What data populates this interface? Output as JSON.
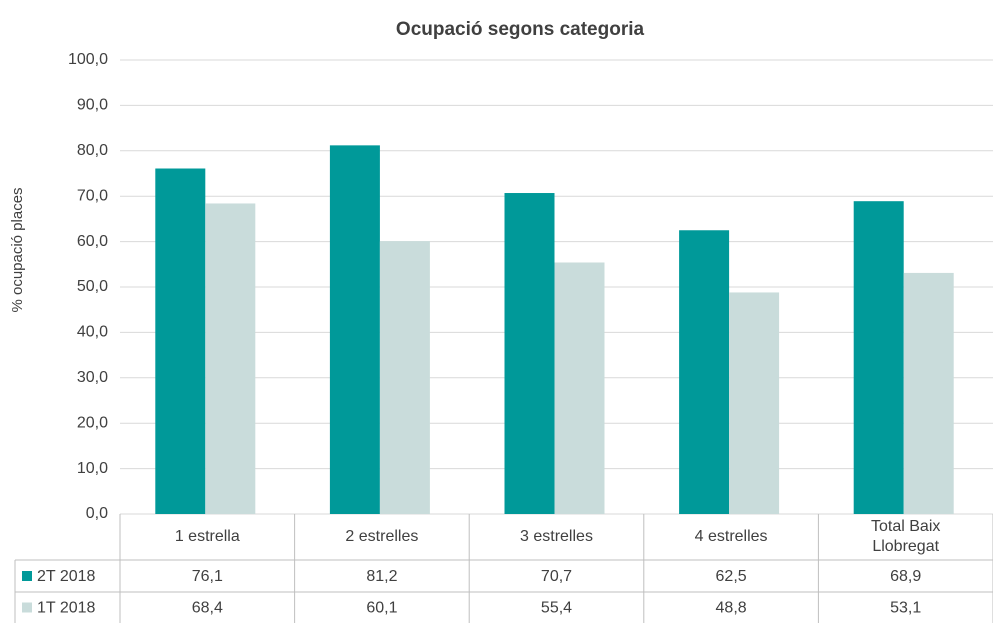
{
  "chart_data": {
    "type": "bar",
    "title": "Ocupació segons categoria",
    "ylabel": "% ocupació  places",
    "categories": [
      "1 estrella",
      "2 estrelles",
      "3 estrelles",
      "4 estrelles",
      "Total Baix Llobregat"
    ],
    "series": [
      {
        "name": "2T 2018",
        "color": "#009999",
        "values": [
          76.1,
          81.2,
          70.7,
          62.5,
          68.9
        ],
        "value_labels": [
          "76,1",
          "81,2",
          "70,7",
          "62,5",
          "68,9"
        ]
      },
      {
        "name": "1T 2018",
        "color": "#c9dcdb",
        "values": [
          68.4,
          60.1,
          55.4,
          48.8,
          53.1
        ],
        "value_labels": [
          "68,4",
          "60,1",
          "55,4",
          "48,8",
          "53,1"
        ]
      }
    ],
    "ylim": [
      0,
      100
    ],
    "yticks": [
      {
        "value": 0,
        "label": "0,0"
      },
      {
        "value": 10,
        "label": "10,0"
      },
      {
        "value": 20,
        "label": "20,0"
      },
      {
        "value": 30,
        "label": "30,0"
      },
      {
        "value": 40,
        "label": "40,0"
      },
      {
        "value": 50,
        "label": "50,0"
      },
      {
        "value": 60,
        "label": "60,0"
      },
      {
        "value": 70,
        "label": "70,0"
      },
      {
        "value": 80,
        "label": "80,0"
      },
      {
        "value": 90,
        "label": "90,0"
      },
      {
        "value": 100,
        "label": "100,0"
      }
    ],
    "grid": true
  }
}
